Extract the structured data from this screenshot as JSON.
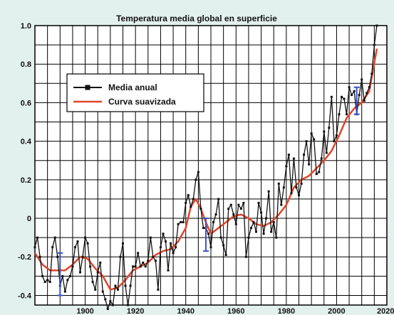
{
  "chart_data": {
    "type": "line",
    "title": "Temperatura media global en superficie",
    "xlabel": "",
    "ylabel": "",
    "xlim": [
      1880,
      2020
    ],
    "ylim": [
      -0.45,
      1.0
    ],
    "xticks": [
      "1900",
      "1920",
      "1940",
      "1960",
      "1980",
      "2000",
      "2020"
    ],
    "yticks": [
      "1.0",
      "0.8",
      "0.6",
      "0.4",
      "0.2",
      "0",
      "-0.2",
      "-0.4"
    ],
    "grid": true,
    "legend_position": "upper-left",
    "series": [
      {
        "name": "Media anual",
        "color": "#111111",
        "marker": "square",
        "x": [
          1880,
          1881,
          1882,
          1883,
          1884,
          1885,
          1886,
          1887,
          1888,
          1889,
          1890,
          1891,
          1892,
          1893,
          1894,
          1895,
          1896,
          1897,
          1898,
          1899,
          1900,
          1901,
          1902,
          1903,
          1904,
          1905,
          1906,
          1907,
          1908,
          1909,
          1910,
          1911,
          1912,
          1913,
          1914,
          1915,
          1916,
          1917,
          1918,
          1919,
          1920,
          1921,
          1922,
          1923,
          1924,
          1925,
          1926,
          1927,
          1928,
          1929,
          1930,
          1931,
          1932,
          1933,
          1934,
          1935,
          1936,
          1937,
          1938,
          1939,
          1940,
          1941,
          1942,
          1943,
          1944,
          1945,
          1946,
          1947,
          1948,
          1949,
          1950,
          1951,
          1952,
          1953,
          1954,
          1955,
          1956,
          1957,
          1958,
          1959,
          1960,
          1961,
          1962,
          1963,
          1964,
          1965,
          1966,
          1967,
          1968,
          1969,
          1970,
          1971,
          1972,
          1973,
          1974,
          1975,
          1976,
          1977,
          1978,
          1979,
          1980,
          1981,
          1982,
          1983,
          1984,
          1985,
          1986,
          1987,
          1988,
          1989,
          1990,
          1991,
          1992,
          1993,
          1994,
          1995,
          1996,
          1997,
          1998,
          1999,
          2000,
          2001,
          2002,
          2003,
          2004,
          2005,
          2006,
          2007,
          2008,
          2009,
          2010,
          2011,
          2012,
          2013,
          2014,
          2015,
          2016
        ],
        "values": [
          -0.15,
          -0.1,
          -0.2,
          -0.3,
          -0.33,
          -0.32,
          -0.33,
          -0.15,
          -0.1,
          -0.2,
          -0.35,
          -0.3,
          -0.38,
          -0.32,
          -0.3,
          -0.25,
          -0.15,
          -0.12,
          -0.28,
          -0.2,
          -0.1,
          -0.13,
          -0.25,
          -0.33,
          -0.37,
          -0.28,
          -0.23,
          -0.38,
          -0.42,
          -0.47,
          -0.43,
          -0.45,
          -0.35,
          -0.37,
          -0.2,
          -0.13,
          -0.35,
          -0.45,
          -0.35,
          -0.25,
          -0.25,
          -0.18,
          -0.25,
          -0.23,
          -0.25,
          -0.22,
          -0.1,
          -0.2,
          -0.22,
          -0.37,
          -0.15,
          -0.08,
          -0.12,
          -0.27,
          -0.13,
          -0.18,
          -0.15,
          -0.03,
          -0.02,
          -0.02,
          0.08,
          0.12,
          0.06,
          0.1,
          0.2,
          0.24,
          0.05,
          -0.05,
          -0.05,
          -0.08,
          -0.15,
          -0.02,
          0.02,
          0.1,
          -0.1,
          -0.14,
          -0.19,
          0.05,
          0.07,
          0.02,
          -0.03,
          0.07,
          0.05,
          0.08,
          -0.2,
          -0.1,
          -0.05,
          -0.02,
          -0.07,
          0.08,
          0.03,
          -0.08,
          0.0,
          0.14,
          -0.07,
          -0.02,
          -0.1,
          0.18,
          0.07,
          0.16,
          0.27,
          0.33,
          0.13,
          0.31,
          0.16,
          0.12,
          0.18,
          0.33,
          0.4,
          0.28,
          0.44,
          0.41,
          0.23,
          0.24,
          0.31,
          0.45,
          0.34,
          0.47,
          0.63,
          0.4,
          0.43,
          0.54,
          0.63,
          0.62,
          0.54,
          0.68,
          0.64,
          0.66,
          0.54,
          0.64,
          0.72,
          0.61,
          0.65,
          0.68,
          0.75,
          0.9,
          1.0
        ]
      },
      {
        "name": "Curva suavizada",
        "color": "#e0452b",
        "x": [
          1880,
          1883,
          1886,
          1889,
          1892,
          1895,
          1898,
          1901,
          1904,
          1907,
          1910,
          1913,
          1916,
          1919,
          1922,
          1925,
          1928,
          1931,
          1934,
          1937,
          1940,
          1942,
          1944,
          1946,
          1948,
          1950,
          1953,
          1956,
          1959,
          1962,
          1965,
          1968,
          1971,
          1974,
          1977,
          1980,
          1983,
          1986,
          1989,
          1992,
          1995,
          1998,
          2001,
          2004,
          2007,
          2010,
          2013,
          2016
        ],
        "values": [
          -0.18,
          -0.24,
          -0.27,
          -0.27,
          -0.27,
          -0.24,
          -0.2,
          -0.21,
          -0.26,
          -0.3,
          -0.37,
          -0.36,
          -0.32,
          -0.27,
          -0.25,
          -0.23,
          -0.19,
          -0.17,
          -0.16,
          -0.12,
          -0.05,
          0.06,
          0.1,
          0.05,
          -0.02,
          -0.08,
          -0.05,
          -0.02,
          0.01,
          0.02,
          0.0,
          -0.03,
          -0.04,
          -0.02,
          0.02,
          0.07,
          0.16,
          0.2,
          0.22,
          0.26,
          0.3,
          0.35,
          0.43,
          0.52,
          0.57,
          0.6,
          0.66,
          0.88
        ]
      }
    ],
    "error_bars": [
      {
        "x": 1890,
        "low": -0.4,
        "high": -0.18
      },
      {
        "x": 1948,
        "low": -0.17,
        "high": 0.0
      },
      {
        "x": 2008,
        "low": 0.54,
        "high": 0.68
      }
    ]
  }
}
